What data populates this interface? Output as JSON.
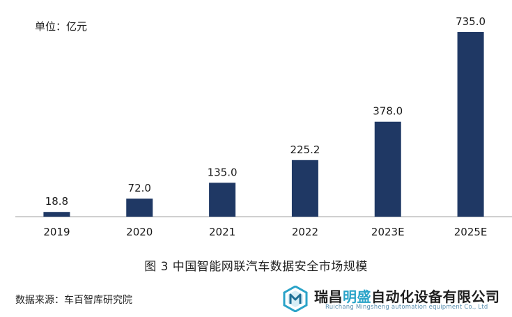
{
  "unit_label": "单位：亿元",
  "caption": "图 3  中国智能网联汽车数据安全市场规模",
  "source": "数据来源：车百智库研究院",
  "logo": {
    "name_before": "瑞昌",
    "name_accent": "明盛",
    "name_after": "自动化设备有限公司",
    "subtitle": "Ruichang Mingsheng automation equipment Co., Ltd",
    "icon_name": "mingsheng-logo-icon"
  },
  "colors": {
    "bar": "#1f3864",
    "axis": "#bfbfbf",
    "logo_accent": "#2aa3c8"
  },
  "chart_data": {
    "type": "bar",
    "categories": [
      "2019",
      "2020",
      "2021",
      "2022",
      "2023E",
      "2025E"
    ],
    "values": [
      18.8,
      72.0,
      135.0,
      225.2,
      378.0,
      735.0
    ],
    "value_labels": [
      "18.8",
      "72.0",
      "135.0",
      "225.2",
      "378.0",
      "735.0"
    ],
    "title": "",
    "xlabel": "",
    "ylabel": "",
    "ylim": [
      0,
      735
    ],
    "grid": false,
    "legend": "none"
  }
}
